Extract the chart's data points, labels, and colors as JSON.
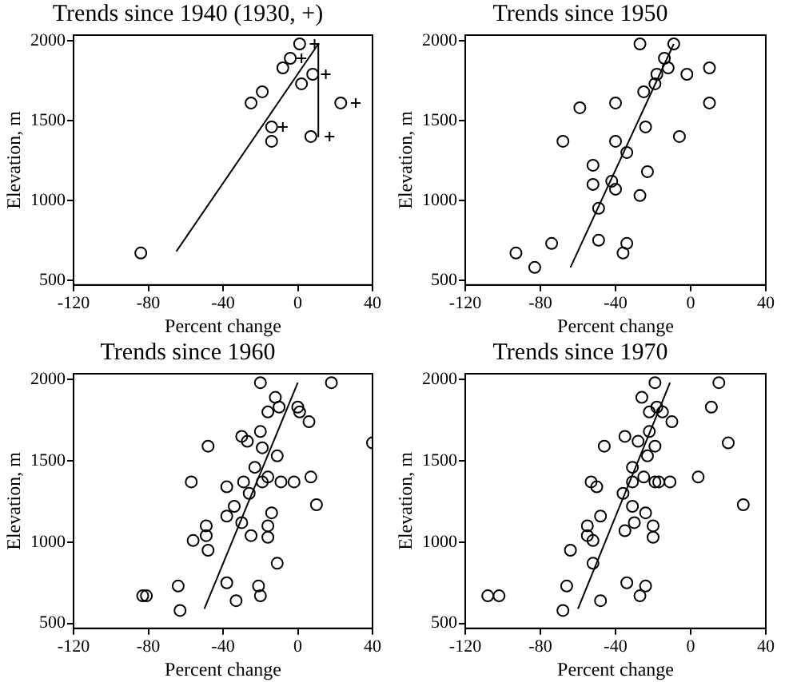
{
  "chart_data": [
    {
      "type": "scatter",
      "title": "Trends since 1940 (1930, +)",
      "xlabel": "Percent change",
      "ylabel": "Elevation, m",
      "xlim": [
        -120,
        40
      ],
      "ylim": [
        470,
        2035
      ],
      "xticks": [
        -120,
        -80,
        -40,
        0,
        40
      ],
      "yticks": [
        500,
        1000,
        1500,
        2000
      ],
      "grid": false,
      "marker": "circle",
      "series": [
        {
          "color": "#000000",
          "x": [
            1,
            -4,
            -8,
            8,
            2,
            -19,
            -25,
            -14,
            -14,
            7,
            23,
            -84
          ],
          "values": [
            1980,
            1890,
            1830,
            1790,
            1730,
            1680,
            1610,
            1460,
            1370,
            1400,
            1610,
            670
          ]
        },
        {
          "color": "#000000",
          "marker": "cross",
          "x": [
            9,
            2,
            15,
            31,
            -8,
            17
          ],
          "values": [
            1980,
            1890,
            1790,
            1610,
            1460,
            1400
          ]
        },
        {
          "type": "line",
          "color": "#000000",
          "marker": "none",
          "x": [
            -65,
            11,
            11
          ],
          "values": [
            680,
            1980,
            1400
          ]
        }
      ]
    },
    {
      "type": "scatter",
      "title": "Trends since 1950",
      "xlabel": "Percent change",
      "ylabel": "Elevation, m",
      "xlim": [
        -120,
        40
      ],
      "ylim": [
        470,
        2035
      ],
      "xticks": [
        -120,
        -80,
        -40,
        0,
        40
      ],
      "yticks": [
        500,
        1000,
        1500,
        2000
      ],
      "grid": false,
      "marker": "circle",
      "series": [
        {
          "color": "#000000",
          "x": [
            -27,
            -9,
            -14,
            -12,
            -18,
            -2,
            10,
            -19,
            -25,
            -40,
            -59,
            10,
            -68,
            -24,
            -6,
            -40,
            -34,
            -52,
            -52,
            -42,
            -40,
            -23,
            -27,
            -49,
            -49,
            -74,
            -34,
            -36,
            -93,
            -83
          ],
          "values": [
            1980,
            1980,
            1890,
            1830,
            1790,
            1790,
            1830,
            1730,
            1680,
            1610,
            1580,
            1610,
            1370,
            1460,
            1400,
            1370,
            1300,
            1220,
            1100,
            1120,
            1070,
            1180,
            1030,
            950,
            750,
            730,
            730,
            670,
            670,
            580
          ]
        },
        {
          "type": "line",
          "color": "#000000",
          "marker": "none",
          "x": [
            -64,
            -9
          ],
          "values": [
            580,
            1980
          ]
        }
      ]
    },
    {
      "type": "scatter",
      "title": "Trends since 1960",
      "xlabel": "Percent change",
      "ylabel": "Elevation, m",
      "xlim": [
        -120,
        40
      ],
      "ylim": [
        470,
        2035
      ],
      "xticks": [
        -120,
        -80,
        -40,
        0,
        40
      ],
      "yticks": [
        500,
        1000,
        1500,
        2000
      ],
      "grid": false,
      "marker": "circle",
      "series": [
        {
          "color": "#000000",
          "x": [
            -20,
            18,
            -12,
            -16,
            -10,
            0,
            1,
            6,
            -20,
            -30,
            -27,
            -19,
            -48,
            -11,
            40,
            -23,
            -57,
            -29,
            -19,
            -16,
            -9,
            -2,
            7,
            -38,
            -26,
            -34,
            -38,
            -30,
            -14,
            10,
            -49,
            -49,
            -56,
            -25,
            -16,
            -16,
            -48,
            -11,
            -38,
            -64,
            -21,
            -20,
            -33,
            -63,
            -83,
            -81
          ],
          "values": [
            1980,
            1980,
            1890,
            1800,
            1830,
            1830,
            1800,
            1740,
            1680,
            1650,
            1620,
            1580,
            1590,
            1530,
            1610,
            1460,
            1370,
            1370,
            1370,
            1400,
            1370,
            1370,
            1400,
            1340,
            1300,
            1220,
            1160,
            1120,
            1180,
            1230,
            1100,
            1040,
            1010,
            1040,
            1100,
            1030,
            950,
            870,
            750,
            730,
            730,
            670,
            640,
            580,
            670,
            670
          ]
        },
        {
          "type": "line",
          "color": "#000000",
          "marker": "none",
          "x": [
            -50,
            0
          ],
          "values": [
            590,
            1980
          ]
        }
      ]
    },
    {
      "type": "scatter",
      "title": "Trends since 1970",
      "xlabel": "Percent change",
      "ylabel": "Elevation, m",
      "xlim": [
        -120,
        40
      ],
      "ylim": [
        470,
        2035
      ],
      "xticks": [
        -120,
        -80,
        -40,
        0,
        40
      ],
      "yticks": [
        500,
        1000,
        1500,
        2000
      ],
      "grid": false,
      "marker": "circle",
      "series": [
        {
          "color": "#000000",
          "x": [
            -19,
            15,
            -26,
            -18,
            -22,
            -15,
            11,
            -10,
            -35,
            -28,
            -22,
            -19,
            -46,
            20,
            -23,
            -31,
            -25,
            4,
            -19,
            -17,
            -11,
            -31,
            -53,
            -50,
            -36,
            -31,
            -48,
            -24,
            -30,
            -35,
            -20,
            -20,
            -55,
            -55,
            -52,
            28,
            -64,
            -52,
            -34,
            -66,
            -24,
            -27,
            -48,
            -68,
            -108,
            -102
          ],
          "values": [
            1980,
            1980,
            1890,
            1830,
            1800,
            1800,
            1830,
            1740,
            1650,
            1620,
            1680,
            1590,
            1590,
            1610,
            1530,
            1460,
            1400,
            1400,
            1370,
            1370,
            1370,
            1370,
            1370,
            1340,
            1300,
            1220,
            1160,
            1180,
            1120,
            1070,
            1100,
            1030,
            1100,
            1040,
            1010,
            1230,
            950,
            870,
            750,
            730,
            730,
            670,
            640,
            580,
            670,
            670
          ]
        },
        {
          "type": "line",
          "color": "#000000",
          "marker": "none",
          "x": [
            -60,
            -11
          ],
          "values": [
            590,
            1980
          ]
        }
      ]
    }
  ]
}
